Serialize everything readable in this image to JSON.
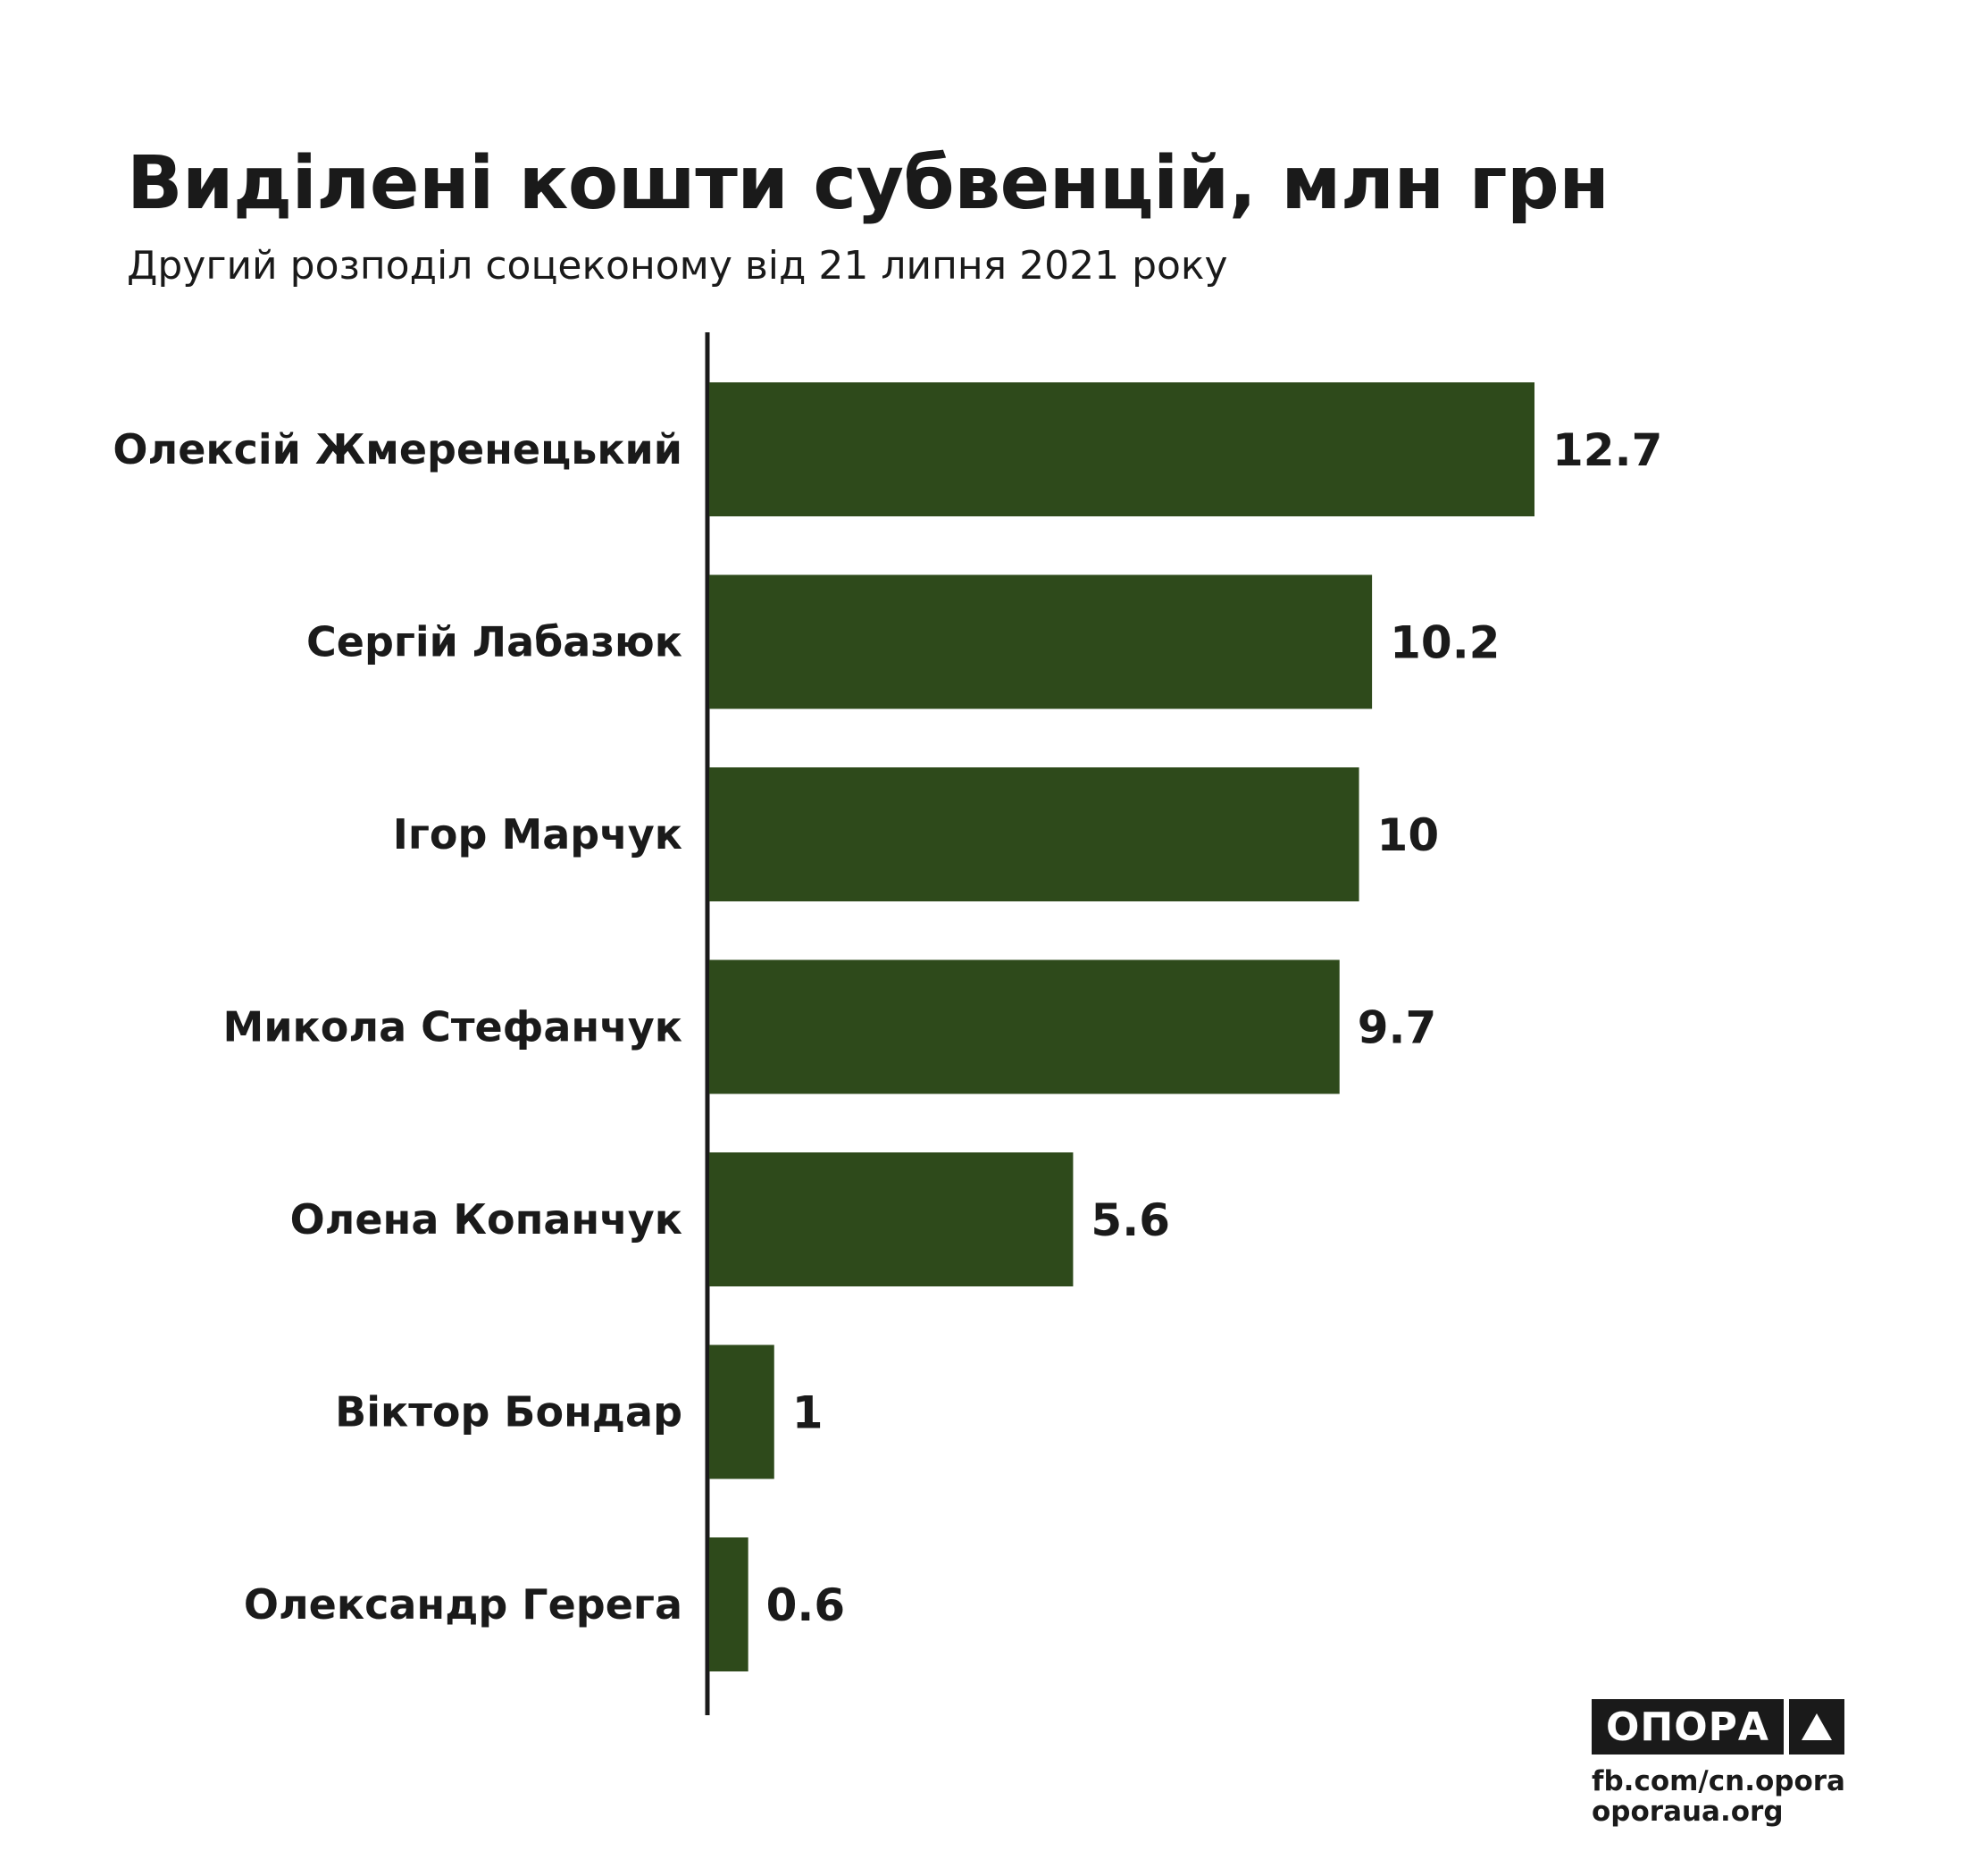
{
  "chart_data": {
    "type": "bar",
    "orientation": "horizontal",
    "title": "Виділені кошти субвенцій, млн грн",
    "subtitle": "Другий розподіл соцекономy від 21 липня 2021 року",
    "categories": [
      "Олексій Жмеренецький",
      "Сергій Лабазюк",
      "Ігор Марчук",
      "Микола Стефанчук",
      "Олена Копанчук",
      "Віктор Бондар",
      "Олександр Герега"
    ],
    "values": [
      12.7,
      10.2,
      10,
      9.7,
      5.6,
      1,
      0.6
    ],
    "value_labels": [
      "12.7",
      "10.2",
      "10",
      "9.7",
      "5.6",
      "1",
      "0.6"
    ],
    "xlim": [
      0,
      12.7
    ],
    "grid": false,
    "bar_color": "#2e4a1b"
  },
  "branding": {
    "logo_text": "ОПОРА",
    "logo_mark": "triangle-icon",
    "links": [
      "fb.com/cn.opora",
      "oporaua.org"
    ]
  }
}
